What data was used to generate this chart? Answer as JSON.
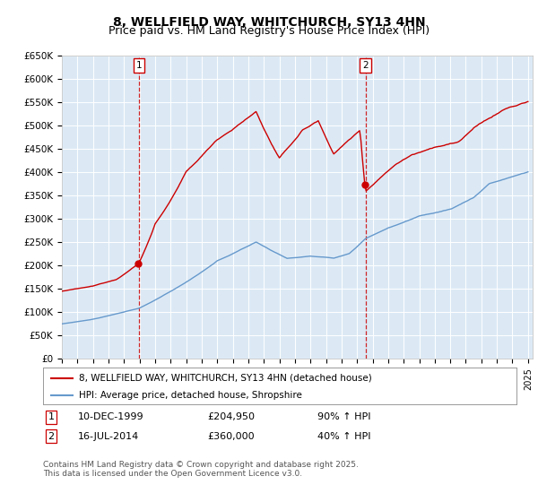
{
  "title": "8, WELLFIELD WAY, WHITCHURCH, SY13 4HN",
  "subtitle": "Price paid vs. HM Land Registry's House Price Index (HPI)",
  "ylabel_ticks": [
    "£0",
    "£50K",
    "£100K",
    "£150K",
    "£200K",
    "£250K",
    "£300K",
    "£350K",
    "£400K",
    "£450K",
    "£500K",
    "£550K",
    "£600K",
    "£650K"
  ],
  "ylim": [
    0,
    650000
  ],
  "ytick_vals": [
    0,
    50000,
    100000,
    150000,
    200000,
    250000,
    300000,
    350000,
    400000,
    450000,
    500000,
    550000,
    600000,
    650000
  ],
  "x_start_year": 1995,
  "x_end_year": 2025,
  "sale1_year": 1999.95,
  "sale1_price": 204950,
  "sale2_year": 2014.54,
  "sale2_price": 360000,
  "sale_color": "#cc0000",
  "hpi_color": "#6699cc",
  "vline_color": "#cc0000",
  "plot_bg": "#dce9f5",
  "grid_color": "#ffffff",
  "legend_label1": "8, WELLFIELD WAY, WHITCHURCH, SY13 4HN (detached house)",
  "legend_label2": "HPI: Average price, detached house, Shropshire",
  "table_row1": [
    "1",
    "10-DEC-1999",
    "£204,950",
    "90% ↑ HPI"
  ],
  "table_row2": [
    "2",
    "16-JUL-2014",
    "£360,000",
    "40% ↑ HPI"
  ],
  "footnote": "Contains HM Land Registry data © Crown copyright and database right 2025.\nThis data is licensed under the Open Government Licence v3.0.",
  "title_fontsize": 10,
  "subtitle_fontsize": 9,
  "tick_fontsize": 7.5,
  "legend_fontsize": 8
}
